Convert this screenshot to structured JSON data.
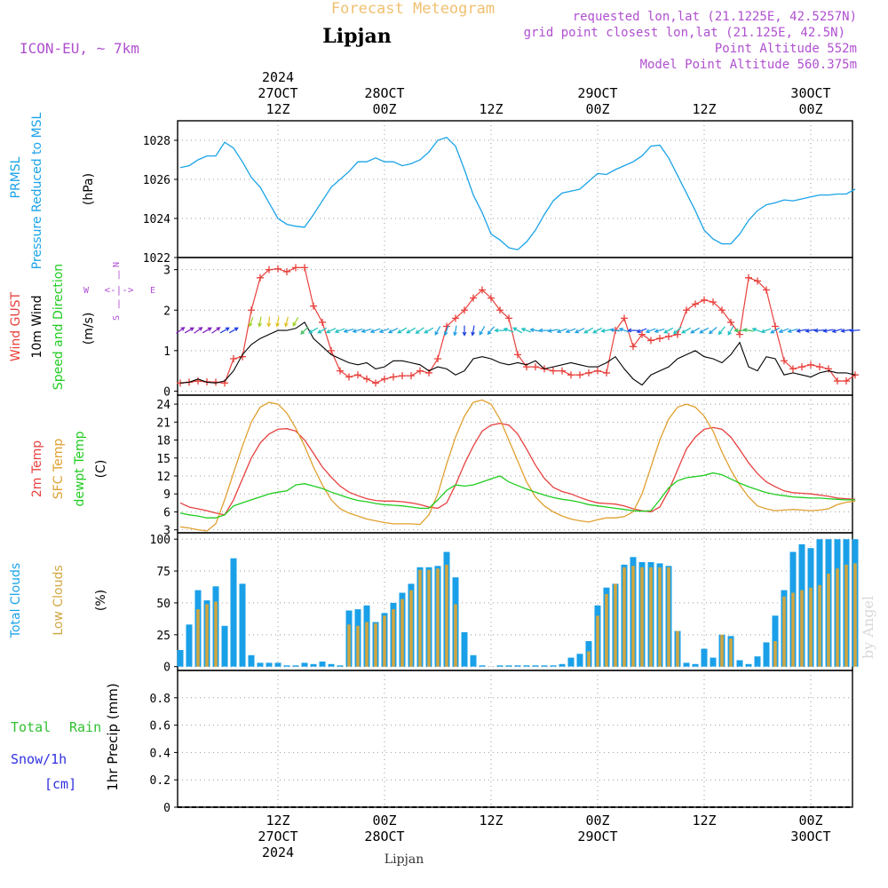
{
  "header": {
    "top_title": "Forecast Meteogram",
    "location": "Lipjan",
    "model": "ICON-EU, ~ 7km",
    "requested": "requested lon,lat (21.1225E, 42.5257N)",
    "grid_point": "grid point closest lon,lat (21.125E, 42.5N)",
    "point_altitude": "Point Altitude 552m",
    "model_altitude": "Model Point Altitude 560.375m",
    "bottom_label": "Lipjan",
    "watermark": "by Angel"
  },
  "time_axis": {
    "year_label": "2024",
    "top_ticks": [
      {
        "t": 12,
        "lines": [
          "2024",
          "27OCT",
          "12Z"
        ]
      },
      {
        "t": 24,
        "lines": [
          "28OCT",
          "00Z"
        ]
      },
      {
        "t": 36,
        "lines": [
          "12Z"
        ]
      },
      {
        "t": 48,
        "lines": [
          "29OCT",
          "00Z"
        ]
      },
      {
        "t": 60,
        "lines": [
          "12Z"
        ]
      },
      {
        "t": 72,
        "lines": [
          "30OCT",
          "00Z"
        ]
      }
    ],
    "bottom_ticks": [
      {
        "t": 12,
        "lines": [
          "12Z",
          "27OCT",
          "2024"
        ]
      },
      {
        "t": 24,
        "lines": [
          "00Z",
          "28OCT"
        ]
      },
      {
        "t": 36,
        "lines": [
          "12Z"
        ]
      },
      {
        "t": 48,
        "lines": [
          "00Z",
          "29OCT"
        ]
      },
      {
        "t": 60,
        "lines": [
          "12Z"
        ]
      },
      {
        "t": 72,
        "lines": [
          "00Z",
          "30OCT"
        ]
      }
    ],
    "range_hours": [
      0.7,
      76.7
    ]
  },
  "panel_labels": {
    "prmsl": [
      "PRMSL",
      "Pressure Reduced to MSL"
    ],
    "prmsl_unit": "(hPa)",
    "wind_gust": "Wind GUST",
    "wind_10m": "10m Wind",
    "wind_speed_dir": "Speed and Direction",
    "wind_unit": "(m/s)",
    "compass": {
      "n": "N",
      "s": "S",
      "w": "W",
      "e": "E"
    },
    "temp_2m": "2m Temp",
    "temp_sfc": "SFC Temp",
    "temp_dewpt": "dewpt Temp",
    "temp_unit": "(C)",
    "clouds_total": "Total Clouds",
    "clouds_low": "Low Clouds",
    "clouds_unit": "(%)",
    "precip_total": "Total",
    "precip_rain": "Rain",
    "precip_snow": "Snow/1h",
    "precip_cm": "[cm]",
    "precip_axis": "1hr Precip (mm)"
  },
  "colors": {
    "pressure": "#1aa3e8",
    "gust": "#e8403c",
    "wind10": "#000000",
    "t2m": "#e84040",
    "tsfc": "#e0a030",
    "dewpt": "#20cc20",
    "total_clouds": "#1aa0e8",
    "low_clouds": "#d0a640",
    "purple": "#b050d0",
    "title_orange": "#f0c070",
    "precip_green": "#30c030",
    "precip_blue": "#3030e0"
  },
  "chart_data": [
    {
      "type": "line",
      "name": "PRMSL",
      "ylim": [
        1022,
        1029
      ],
      "yticks": [
        1022,
        1024,
        1026,
        1028
      ],
      "x": [
        1,
        2,
        3,
        4,
        5,
        6,
        7,
        8,
        9,
        10,
        11,
        12,
        13,
        14,
        15,
        16,
        17,
        18,
        19,
        20,
        21,
        22,
        23,
        24,
        25,
        26,
        27,
        28,
        29,
        30,
        31,
        32,
        33,
        34,
        35,
        36,
        37,
        38,
        39,
        40,
        41,
        42,
        43,
        44,
        45,
        46,
        47,
        48,
        49,
        50,
        51,
        52,
        53,
        54,
        55,
        56,
        57,
        58,
        59,
        60,
        61,
        62,
        63,
        64,
        65,
        66,
        67,
        68,
        69,
        70,
        71,
        72,
        73,
        74,
        75,
        76,
        77
      ],
      "values": [
        1026.6,
        1026.7,
        1027.0,
        1027.2,
        1027.2,
        1027.9,
        1027.6,
        1026.9,
        1026.1,
        1025.6,
        1024.8,
        1024.0,
        1023.7,
        1023.6,
        1023.55,
        1024.2,
        1024.9,
        1025.6,
        1026.0,
        1026.4,
        1026.9,
        1026.9,
        1027.1,
        1026.9,
        1026.9,
        1026.7,
        1026.8,
        1027.0,
        1027.4,
        1028.0,
        1028.15,
        1027.7,
        1026.5,
        1025.2,
        1024.3,
        1023.2,
        1022.9,
        1022.5,
        1022.4,
        1022.8,
        1023.4,
        1024.2,
        1024.9,
        1025.3,
        1025.4,
        1025.5,
        1025.9,
        1026.3,
        1026.25,
        1026.5,
        1026.7,
        1026.9,
        1027.2,
        1027.7,
        1027.75,
        1027.1,
        1026.2,
        1025.3,
        1024.4,
        1023.4,
        1022.95,
        1022.7,
        1022.7,
        1023.2,
        1023.9,
        1024.4,
        1024.7,
        1024.8,
        1024.95,
        1024.9,
        1025.0,
        1025.1,
        1025.2,
        1025.2,
        1025.25,
        1025.25,
        1025.5
      ]
    },
    {
      "type": "line",
      "name": "Wind",
      "ylim": [
        -0.1,
        3.3
      ],
      "yticks": [
        0,
        1,
        2,
        3
      ],
      "x": [
        1,
        2,
        3,
        4,
        5,
        6,
        7,
        8,
        9,
        10,
        11,
        12,
        13,
        14,
        15,
        16,
        17,
        18,
        19,
        20,
        21,
        22,
        23,
        24,
        25,
        26,
        27,
        28,
        29,
        30,
        31,
        32,
        33,
        34,
        35,
        36,
        37,
        38,
        39,
        40,
        41,
        42,
        43,
        44,
        45,
        46,
        47,
        48,
        49,
        50,
        51,
        52,
        53,
        54,
        55,
        56,
        57,
        58,
        59,
        60,
        61,
        62,
        63,
        64,
        65,
        66,
        67,
        68,
        69,
        70,
        71,
        72,
        73,
        74,
        75,
        76,
        77
      ],
      "series": [
        {
          "name": "Wind GUST",
          "values": [
            0.2,
            0.22,
            0.25,
            0.23,
            0.22,
            0.2,
            0.8,
            0.85,
            2.0,
            2.8,
            3.0,
            3.02,
            2.95,
            3.05,
            3.05,
            2.1,
            1.7,
            1.0,
            0.5,
            0.35,
            0.4,
            0.3,
            0.2,
            0.3,
            0.35,
            0.38,
            0.38,
            0.5,
            0.45,
            0.8,
            1.6,
            1.8,
            2.0,
            2.3,
            2.5,
            2.3,
            2.0,
            1.8,
            0.9,
            0.6,
            0.6,
            0.55,
            0.5,
            0.5,
            0.4,
            0.4,
            0.45,
            0.5,
            0.45,
            1.5,
            1.8,
            1.1,
            1.4,
            1.25,
            1.3,
            1.35,
            1.4,
            2.0,
            2.15,
            2.25,
            2.2,
            2.0,
            1.7,
            1.4,
            2.8,
            2.72,
            2.5,
            1.6,
            0.75,
            0.55,
            0.6,
            0.65,
            0.6,
            0.55,
            0.25,
            0.25,
            0.4
          ]
        },
        {
          "name": "10m Wind",
          "values": [
            0.2,
            0.22,
            0.3,
            0.22,
            0.2,
            0.25,
            0.5,
            0.9,
            1.15,
            1.3,
            1.4,
            1.5,
            1.5,
            1.55,
            1.7,
            1.3,
            1.1,
            0.9,
            0.8,
            0.7,
            0.65,
            0.7,
            0.55,
            0.6,
            0.75,
            0.75,
            0.7,
            0.65,
            0.5,
            0.6,
            0.55,
            0.4,
            0.5,
            0.8,
            0.85,
            0.8,
            0.7,
            0.65,
            0.7,
            0.65,
            0.75,
            0.55,
            0.6,
            0.65,
            0.7,
            0.65,
            0.6,
            0.6,
            0.7,
            0.85,
            0.55,
            0.3,
            0.15,
            0.4,
            0.5,
            0.6,
            0.8,
            0.9,
            1.0,
            0.85,
            0.8,
            0.7,
            0.9,
            1.2,
            0.6,
            0.5,
            0.85,
            0.8,
            0.4,
            0.45,
            0.4,
            0.35,
            0.45,
            0.5,
            0.45,
            0.45,
            0.4
          ]
        }
      ]
    },
    {
      "type": "line",
      "name": "Temperature",
      "ylim": [
        2.5,
        25.5
      ],
      "yticks": [
        3,
        6,
        9,
        12,
        15,
        18,
        21,
        24
      ],
      "x": [
        1,
        2,
        3,
        4,
        5,
        6,
        7,
        8,
        9,
        10,
        11,
        12,
        13,
        14,
        15,
        16,
        17,
        18,
        19,
        20,
        21,
        22,
        23,
        24,
        25,
        26,
        27,
        28,
        29,
        30,
        31,
        32,
        33,
        34,
        35,
        36,
        37,
        38,
        39,
        40,
        41,
        42,
        43,
        44,
        45,
        46,
        47,
        48,
        49,
        50,
        51,
        52,
        53,
        54,
        55,
        56,
        57,
        58,
        59,
        60,
        61,
        62,
        63,
        64,
        65,
        66,
        67,
        68,
        69,
        70,
        71,
        72,
        73,
        74,
        75,
        76,
        77
      ],
      "series": [
        {
          "name": "2m Temp",
          "values": [
            7.5,
            6.8,
            6.5,
            6.2,
            5.8,
            5.5,
            8.0,
            11.5,
            15.0,
            17.5,
            19.0,
            19.8,
            19.9,
            19.5,
            18.0,
            15.8,
            13.5,
            11.8,
            10.3,
            9.3,
            8.7,
            8.2,
            7.9,
            7.8,
            7.8,
            7.7,
            7.5,
            7.2,
            6.8,
            6.6,
            7.5,
            10.5,
            14.0,
            17.0,
            19.5,
            20.5,
            20.8,
            20.5,
            19.0,
            16.5,
            13.8,
            11.6,
            10.1,
            9.4,
            9.0,
            8.4,
            7.9,
            7.5,
            7.4,
            7.3,
            7.0,
            6.5,
            6.2,
            6.0,
            6.8,
            9.5,
            13.0,
            16.5,
            18.5,
            19.8,
            20.1,
            19.8,
            18.5,
            16.4,
            14.2,
            12.4,
            11.0,
            10.2,
            9.5,
            9.2,
            9.1,
            9.0,
            8.8,
            8.6,
            8.3,
            8.2,
            8.1
          ]
        },
        {
          "name": "SFC Temp",
          "values": [
            3.5,
            3.3,
            3.0,
            2.8,
            4.0,
            8.0,
            12.5,
            17.0,
            21.0,
            23.5,
            24.3,
            24.0,
            22.5,
            20.0,
            17.0,
            13.5,
            10.5,
            8.0,
            6.5,
            5.8,
            5.3,
            4.8,
            4.5,
            4.2,
            4.0,
            4.0,
            4.0,
            3.9,
            5.5,
            9.0,
            14.0,
            18.5,
            22.0,
            24.3,
            24.7,
            24.0,
            21.5,
            18.0,
            14.5,
            11.0,
            8.5,
            7.0,
            6.0,
            5.3,
            4.8,
            4.5,
            4.3,
            4.7,
            5.0,
            5.0,
            5.2,
            6.0,
            9.0,
            13.5,
            18.0,
            21.5,
            23.5,
            24.0,
            23.5,
            22.0,
            19.5,
            16.0,
            13.0,
            10.5,
            8.5,
            7.0,
            6.5,
            6.2,
            6.3,
            6.4,
            6.3,
            6.2,
            6.3,
            6.5,
            7.2,
            7.6,
            7.8
          ]
        },
        {
          "name": "dewpt Temp",
          "values": [
            5.8,
            5.5,
            5.3,
            5.0,
            5.0,
            5.5,
            7.0,
            7.5,
            8.0,
            8.5,
            9.0,
            9.3,
            9.5,
            10.5,
            10.7,
            10.3,
            9.9,
            9.3,
            8.8,
            8.3,
            7.9,
            7.7,
            7.4,
            7.2,
            7.1,
            7.0,
            6.8,
            6.6,
            6.6,
            8.0,
            9.6,
            10.5,
            10.3,
            10.5,
            11.0,
            11.5,
            12.0,
            11.0,
            10.4,
            9.8,
            9.3,
            8.8,
            8.4,
            8.1,
            7.9,
            7.6,
            7.2,
            7.0,
            6.8,
            6.6,
            6.4,
            6.2,
            6.1,
            6.2,
            8.0,
            10.0,
            11.2,
            11.7,
            11.9,
            12.1,
            12.5,
            12.2,
            11.5,
            10.8,
            10.2,
            9.7,
            9.2,
            8.9,
            8.7,
            8.5,
            8.4,
            8.3,
            8.3,
            8.2,
            8.1,
            8.0,
            8.0
          ]
        }
      ]
    },
    {
      "type": "bar",
      "name": "Clouds",
      "ylim": [
        -3,
        105
      ],
      "yticks": [
        0,
        25,
        50,
        75,
        100
      ],
      "x": [
        1,
        2,
        3,
        4,
        5,
        6,
        7,
        8,
        9,
        10,
        11,
        12,
        13,
        14,
        15,
        16,
        17,
        18,
        19,
        20,
        21,
        22,
        23,
        24,
        25,
        26,
        27,
        28,
        29,
        30,
        31,
        32,
        33,
        34,
        35,
        36,
        37,
        38,
        39,
        40,
        41,
        42,
        43,
        44,
        45,
        46,
        47,
        48,
        49,
        50,
        51,
        52,
        53,
        54,
        55,
        56,
        57,
        58,
        59,
        60,
        61,
        62,
        63,
        64,
        65,
        66,
        67,
        68,
        69,
        70,
        71,
        72,
        73,
        74,
        75,
        76,
        77
      ],
      "series": [
        {
          "name": "Total Clouds",
          "values": [
            13,
            33,
            60,
            52,
            63,
            32,
            85,
            65,
            9,
            3,
            3,
            3,
            1,
            1,
            3,
            2,
            4,
            2,
            1,
            44,
            45,
            48,
            35,
            42,
            50,
            58,
            65,
            78,
            78,
            79,
            90,
            70,
            27,
            9,
            1,
            0,
            1,
            1,
            1,
            1,
            1,
            1,
            1,
            2,
            7,
            10,
            20,
            48,
            62,
            65,
            80,
            86,
            82,
            82,
            81,
            79,
            28,
            3,
            2,
            14,
            7,
            25,
            24,
            5,
            2,
            8,
            19,
            40,
            60,
            90,
            96,
            93,
            100,
            100,
            100,
            100,
            100
          ]
        },
        {
          "name": "Low Clouds",
          "values": [
            0,
            0,
            45,
            49,
            51,
            0,
            0,
            0,
            0,
            0,
            0,
            0,
            0,
            0,
            0,
            0,
            0,
            0,
            0,
            33,
            32,
            35,
            34,
            40,
            45,
            53,
            60,
            76,
            76,
            77,
            80,
            49,
            0,
            0,
            0,
            0,
            0,
            0,
            0,
            0,
            0,
            0,
            0,
            0,
            0,
            0,
            12,
            40,
            57,
            65,
            78,
            79,
            78,
            78,
            78,
            78,
            28,
            0,
            0,
            0,
            0,
            25,
            22,
            0,
            0,
            0,
            0,
            20,
            55,
            58,
            60,
            62,
            64,
            73,
            77,
            80,
            81
          ]
        }
      ]
    },
    {
      "type": "bar",
      "name": "Precipitation",
      "ylim": [
        0,
        1.0
      ],
      "yticks": [
        0,
        0.2,
        0.4,
        0.6,
        0.8
      ],
      "x": [],
      "values": []
    }
  ]
}
